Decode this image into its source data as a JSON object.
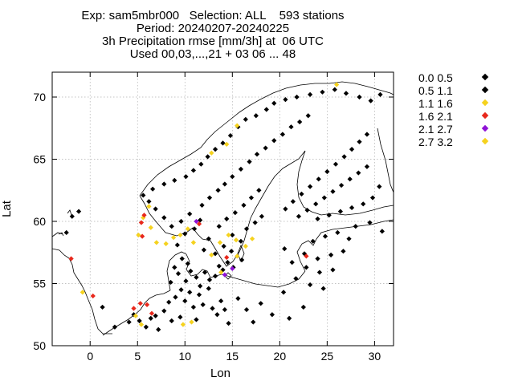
{
  "title_lines": [
    "Exp: sam5mbr000   Selection: ALL    593 stations",
    "Period: 20240207-20240225",
    "3h Precipitation rmse [mm/3h] at  06 UTC",
    "Used 00,03,...,21 + 03 06 ... 48"
  ],
  "legend": [
    {
      "label": "0.0 0.5",
      "color": "#000000"
    },
    {
      "label": "0.5 1.1",
      "color": "#000000"
    },
    {
      "label": "1.1 1.6",
      "color": "#f5d21e"
    },
    {
      "label": "1.6 2.1",
      "color": "#e8281c"
    },
    {
      "label": "2.1 2.7",
      "color": "#8f12d6"
    },
    {
      "label": "2.7 3.2",
      "color": "#f5d21e"
    }
  ],
  "chart_data": {
    "type": "scatter",
    "xlabel": "Lon",
    "ylabel": "Lat",
    "xlim": [
      -4,
      32
    ],
    "ylim": [
      50,
      72
    ],
    "xticks": [
      0,
      5,
      10,
      15,
      20,
      25,
      30
    ],
    "yticks": [
      50,
      55,
      60,
      65,
      70
    ],
    "grid": true,
    "legend_position": "outside-right",
    "series": [
      {
        "name": "0.0 0.5",
        "color": "#000000",
        "points": [
          [
            -2.5,
            59.1
          ],
          [
            -1.9,
            60.4
          ],
          [
            -1.2,
            60.8
          ],
          [
            1.3,
            53.1
          ],
          [
            2.6,
            51.5
          ],
          [
            4.1,
            51.9
          ],
          [
            4.6,
            52.5
          ],
          [
            5.2,
            52.0
          ],
          [
            5.9,
            51.5
          ],
          [
            6.4,
            52.2
          ],
          [
            6.9,
            52.4
          ],
          [
            7.2,
            51.3
          ],
          [
            7.8,
            52.8
          ],
          [
            8.3,
            53.5
          ],
          [
            8.6,
            52.0
          ],
          [
            9.0,
            53.9
          ],
          [
            9.5,
            52.3
          ],
          [
            9.6,
            54.5
          ],
          [
            10.0,
            53.6
          ],
          [
            10.5,
            54.3
          ],
          [
            10.9,
            53.1
          ],
          [
            11.2,
            52.1
          ],
          [
            11.5,
            54.1
          ],
          [
            11.9,
            53.3
          ],
          [
            12.5,
            54.6
          ],
          [
            12.9,
            53.0
          ],
          [
            13.4,
            52.5
          ],
          [
            13.8,
            53.6
          ],
          [
            14.2,
            52.9
          ],
          [
            14.6,
            51.8
          ],
          [
            10.1,
            55.2
          ],
          [
            10.6,
            56.0
          ],
          [
            11.2,
            55.5
          ],
          [
            11.6,
            54.8
          ],
          [
            12.1,
            55.9
          ],
          [
            12.6,
            55.3
          ],
          [
            13.2,
            55.6
          ],
          [
            13.6,
            56.4
          ],
          [
            9.7,
            57.0
          ],
          [
            10.3,
            56.6
          ],
          [
            8.9,
            56.3
          ],
          [
            9.3,
            55.8
          ],
          [
            8.5,
            55.1
          ],
          [
            14.0,
            56.1
          ],
          [
            14.5,
            56.7
          ],
          [
            15.1,
            56.3
          ],
          [
            16.0,
            56.9
          ],
          [
            9.2,
            58.1
          ],
          [
            10.0,
            59.0
          ],
          [
            11.0,
            59.4
          ],
          [
            11.6,
            60.1
          ],
          [
            10.5,
            60.6
          ],
          [
            9.6,
            60.0
          ],
          [
            8.6,
            59.6
          ],
          [
            7.8,
            60.3
          ],
          [
            6.9,
            61.0
          ],
          [
            6.2,
            61.6
          ],
          [
            5.6,
            62.1
          ],
          [
            6.6,
            62.6
          ],
          [
            7.8,
            63.0
          ],
          [
            8.9,
            63.3
          ],
          [
            10.1,
            63.6
          ],
          [
            10.9,
            64.1
          ],
          [
            11.7,
            64.6
          ],
          [
            12.4,
            65.2
          ],
          [
            13.2,
            65.8
          ],
          [
            14.0,
            66.3
          ],
          [
            14.8,
            66.9
          ],
          [
            15.6,
            67.6
          ],
          [
            16.4,
            68.2
          ],
          [
            17.5,
            68.5
          ],
          [
            18.6,
            69.0
          ],
          [
            19.4,
            69.5
          ],
          [
            20.6,
            69.8
          ],
          [
            21.8,
            70.0
          ],
          [
            23.2,
            70.2
          ],
          [
            24.5,
            70.4
          ],
          [
            25.8,
            70.6
          ],
          [
            27.0,
            70.3
          ],
          [
            28.4,
            70.0
          ],
          [
            29.6,
            69.7
          ],
          [
            30.6,
            70.2
          ],
          [
            11.8,
            61.3
          ],
          [
            12.6,
            61.9
          ],
          [
            13.5,
            62.5
          ],
          [
            14.2,
            63.0
          ],
          [
            15.0,
            63.6
          ],
          [
            15.9,
            64.2
          ],
          [
            16.8,
            64.8
          ],
          [
            17.6,
            65.4
          ],
          [
            18.5,
            65.9
          ],
          [
            19.4,
            66.5
          ],
          [
            20.3,
            67.0
          ],
          [
            21.2,
            67.6
          ],
          [
            22.1,
            68.0
          ],
          [
            23.0,
            68.5
          ],
          [
            13.6,
            59.6
          ],
          [
            14.4,
            60.2
          ],
          [
            15.3,
            60.7
          ],
          [
            16.2,
            61.3
          ],
          [
            17.0,
            61.9
          ],
          [
            17.8,
            62.5
          ],
          [
            16.5,
            59.4
          ],
          [
            17.4,
            59.9
          ],
          [
            18.1,
            60.4
          ],
          [
            15.0,
            58.9
          ],
          [
            15.9,
            58.4
          ],
          [
            14.1,
            58.0
          ],
          [
            13.2,
            57.4
          ],
          [
            12.5,
            58.6
          ],
          [
            12.0,
            57.7
          ],
          [
            14.9,
            57.6
          ],
          [
            20.6,
            61.0
          ],
          [
            21.4,
            61.6
          ],
          [
            22.3,
            62.2
          ],
          [
            23.2,
            62.8
          ],
          [
            24.1,
            63.4
          ],
          [
            25.0,
            64.0
          ],
          [
            25.9,
            64.6
          ],
          [
            26.8,
            65.2
          ],
          [
            27.6,
            65.8
          ],
          [
            28.4,
            66.4
          ],
          [
            29.2,
            67.0
          ],
          [
            22.0,
            60.4
          ],
          [
            22.9,
            60.9
          ],
          [
            23.8,
            61.4
          ],
          [
            24.7,
            61.9
          ],
          [
            25.6,
            62.4
          ],
          [
            26.5,
            62.9
          ],
          [
            27.4,
            63.4
          ],
          [
            28.3,
            63.9
          ],
          [
            29.2,
            64.4
          ],
          [
            24.0,
            60.2
          ],
          [
            25.2,
            60.5
          ],
          [
            26.4,
            60.8
          ],
          [
            27.6,
            61.1
          ],
          [
            28.8,
            61.4
          ],
          [
            29.8,
            61.9
          ],
          [
            30.5,
            62.8
          ],
          [
            23.5,
            58.4
          ],
          [
            24.8,
            58.8
          ],
          [
            26.1,
            59.1
          ],
          [
            27.3,
            58.6
          ],
          [
            22.6,
            57.4
          ],
          [
            24.0,
            57.0
          ],
          [
            25.4,
            57.3
          ],
          [
            26.7,
            57.6
          ],
          [
            21.3,
            56.7
          ],
          [
            22.8,
            56.3
          ],
          [
            24.2,
            55.9
          ],
          [
            25.6,
            56.1
          ],
          [
            23.2,
            54.9
          ],
          [
            24.6,
            54.6
          ],
          [
            21.7,
            55.4
          ],
          [
            20.5,
            57.8
          ],
          [
            28.0,
            59.6
          ],
          [
            29.5,
            59.9
          ],
          [
            30.8,
            59.2
          ],
          [
            20.4,
            54.3
          ],
          [
            19.2,
            52.5
          ],
          [
            18.0,
            53.4
          ],
          [
            16.5,
            52.9
          ],
          [
            17.2,
            51.9
          ],
          [
            15.6,
            53.8
          ],
          [
            21.0,
            52.2
          ],
          [
            22.5,
            53.1
          ]
        ]
      },
      {
        "name": "1.1 1.6",
        "color": "#f5d21e",
        "points": [
          [
            -0.8,
            54.3
          ],
          [
            4.8,
            52.4
          ],
          [
            5.4,
            51.7
          ],
          [
            5.1,
            58.9
          ],
          [
            5.6,
            60.3
          ],
          [
            6.2,
            61.2
          ],
          [
            7.0,
            58.3
          ],
          [
            8.0,
            58.2
          ],
          [
            8.8,
            58.7
          ],
          [
            9.5,
            58.9
          ],
          [
            10.3,
            59.4
          ],
          [
            10.9,
            58.3
          ],
          [
            6.4,
            59.5
          ],
          [
            12.8,
            57.3
          ],
          [
            13.7,
            58.3
          ],
          [
            14.6,
            58.9
          ],
          [
            15.4,
            58.5
          ],
          [
            16.4,
            58.0
          ],
          [
            17.1,
            58.6
          ],
          [
            15.5,
            57.2
          ],
          [
            13.8,
            55.9
          ],
          [
            9.8,
            51.7
          ],
          [
            10.7,
            51.9
          ],
          [
            14.4,
            66.2
          ],
          [
            15.5,
            67.7
          ],
          [
            12.8,
            65.5
          ],
          [
            26.0,
            71.0
          ]
        ]
      },
      {
        "name": "1.6 2.1",
        "color": "#e8281c",
        "points": [
          [
            -2.0,
            57.0
          ],
          [
            0.3,
            54.0
          ],
          [
            4.6,
            53.0
          ],
          [
            5.3,
            53.4
          ],
          [
            6.0,
            53.3
          ],
          [
            6.5,
            52.6
          ],
          [
            5.5,
            58.8
          ],
          [
            5.4,
            59.9
          ],
          [
            5.7,
            60.5
          ],
          [
            11.5,
            59.8
          ],
          [
            14.4,
            57.1
          ],
          [
            22.8,
            57.2
          ]
        ]
      },
      {
        "name": "2.1 2.7",
        "color": "#8f12d6",
        "points": [
          [
            11.2,
            60.0
          ],
          [
            14.2,
            55.7
          ],
          [
            15.0,
            56.2
          ]
        ]
      }
    ]
  }
}
